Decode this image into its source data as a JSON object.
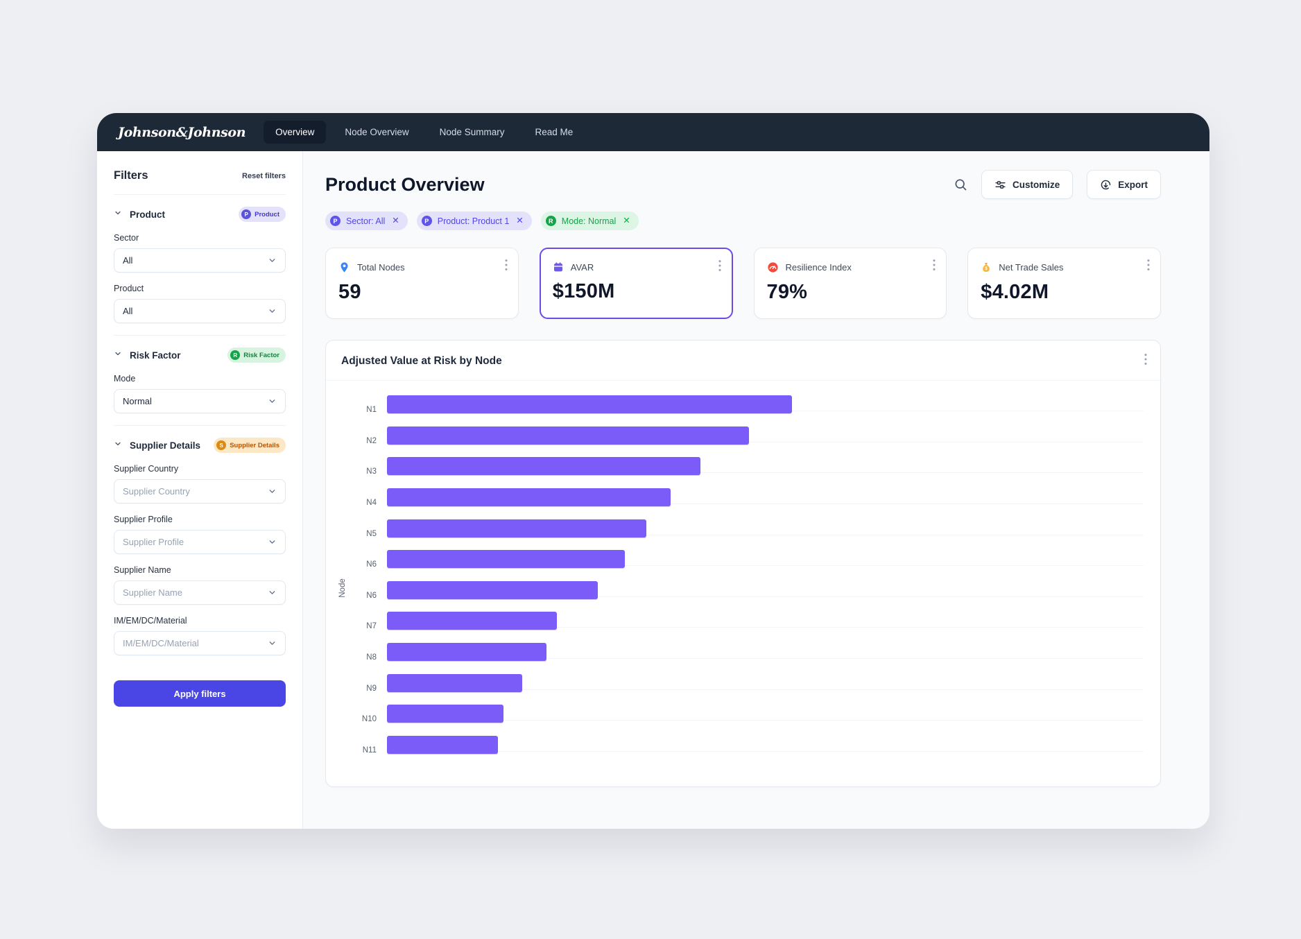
{
  "colors": {
    "accent": "#4946E5",
    "bar": "#7B5CF8",
    "nav_bg": "#1E2938",
    "selected_card_border": "#6D4AE3",
    "chip_purple_bg": "#E4E1FB",
    "chip_purple_text": "#4F46E5",
    "chip_green_bg": "#DCF5E4",
    "chip_green_text": "#16A34A",
    "badge_amber_text": "#B45309",
    "kpi_pin_blue": "#3B82F6",
    "kpi_gauge_red": "#F04B3B",
    "kpi_moneybag_yellow": "#F5B940"
  },
  "brand": {
    "logo_text": "Johnson&Johnson"
  },
  "nav": {
    "tabs": [
      {
        "label": "Overview",
        "active": true
      },
      {
        "label": "Node Overview",
        "active": false
      },
      {
        "label": "Node Summary",
        "active": false
      },
      {
        "label": "Read Me",
        "active": false
      }
    ]
  },
  "sidebar": {
    "title": "Filters",
    "reset_label": "Reset filters",
    "sections": [
      {
        "title": "Product",
        "badge": {
          "letter": "P",
          "label": "Product",
          "theme": "purple"
        },
        "fields": [
          {
            "label": "Sector",
            "value": "All",
            "is_placeholder": false
          },
          {
            "label": "Product",
            "value": "All",
            "is_placeholder": false
          }
        ]
      },
      {
        "title": "Risk Factor",
        "badge": {
          "letter": "R",
          "label": "Risk Factor",
          "theme": "green"
        },
        "fields": [
          {
            "label": "Mode",
            "value": "Normal",
            "is_placeholder": false
          }
        ]
      },
      {
        "title": "Supplier Details",
        "badge": {
          "letter": "S",
          "label": "Supplier Details",
          "theme": "amber"
        },
        "fields": [
          {
            "label": "Supplier Country",
            "value": "Supplier Country",
            "is_placeholder": true
          },
          {
            "label": "Supplier Profile",
            "value": "Supplier Profile",
            "is_placeholder": true
          },
          {
            "label": "Supplier Name",
            "value": "Supplier Name",
            "is_placeholder": true
          },
          {
            "label": "IM/EM/DC/Material",
            "value": "IM/EM/DC/Material",
            "is_placeholder": true
          }
        ]
      }
    ],
    "apply_label": "Apply filters"
  },
  "main": {
    "title": "Product Overview",
    "toolbar": {
      "customize_label": "Customize",
      "export_label": "Export"
    },
    "chips": [
      {
        "letter": "P",
        "label": "Sector: All",
        "theme": "purple"
      },
      {
        "letter": "P",
        "label": "Product: Product 1",
        "theme": "purple"
      },
      {
        "letter": "R",
        "label": "Mode: Normal",
        "theme": "green"
      }
    ],
    "kpis": [
      {
        "icon": "map-pin-icon",
        "label": "Total Nodes",
        "value": "59",
        "selected": false
      },
      {
        "icon": "calendar-icon",
        "label": "AVAR",
        "value": "$150M",
        "selected": true
      },
      {
        "icon": "gauge-icon",
        "label": "Resilience Index",
        "value": "79%",
        "selected": false
      },
      {
        "icon": "money-bag-icon",
        "label": "Net Trade Sales",
        "value": "$4.02M",
        "selected": false
      }
    ]
  },
  "chart_data": {
    "type": "bar",
    "orientation": "horizontal",
    "title": "Adjusted Value at Risk by Node",
    "xlabel": "",
    "ylabel": "Node",
    "categories": [
      "N1",
      "N2",
      "N3",
      "N4",
      "N5",
      "N6",
      "N6",
      "N7",
      "N8",
      "N9",
      "N10",
      "N11"
    ],
    "values": [
      150,
      134,
      116,
      105,
      96,
      88,
      78,
      63,
      59,
      50,
      43,
      41
    ],
    "value_units_estimated": "$M",
    "x_axis_tick_labels_visible": false,
    "xlim": [
      0,
      280
    ],
    "grid": "horizontal row separators only",
    "legend": "none",
    "bar_color": "#7B5CF8"
  }
}
